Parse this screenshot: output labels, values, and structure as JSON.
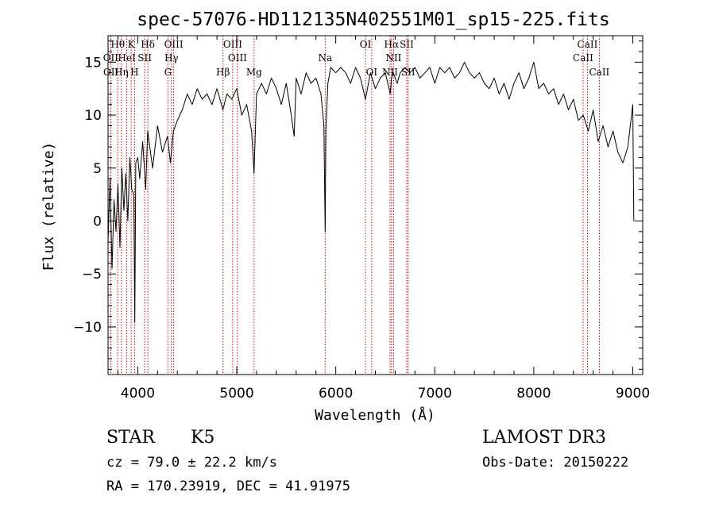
{
  "chart_data": {
    "type": "line",
    "title": "spec-57076-HD112135N402551M01_sp15-225.fits",
    "xlabel": "Wavelength (Å)",
    "ylabel": "Flux (relative)",
    "xlim": [
      3700,
      9100
    ],
    "ylim": [
      -14.5,
      17.5
    ],
    "xticks": [
      4000,
      5000,
      6000,
      7000,
      8000,
      9000
    ],
    "yticks": [
      -10,
      -5,
      0,
      5,
      10,
      15
    ],
    "xtick_labels": [
      "4000",
      "5000",
      "6000",
      "7000",
      "8000",
      "9000"
    ],
    "ytick_labels": [
      "−10",
      "−5",
      "0",
      "5",
      "10",
      "15"
    ],
    "line_color": "#000000",
    "marker_color": "#cc0000",
    "series": [
      {
        "name": "flux",
        "x": [
          3700,
          3720,
          3740,
          3760,
          3780,
          3800,
          3820,
          3840,
          3860,
          3880,
          3900,
          3920,
          3940,
          3960,
          3970,
          3980,
          4000,
          4020,
          4050,
          4080,
          4100,
          4150,
          4200,
          4250,
          4300,
          4330,
          4360,
          4400,
          4450,
          4500,
          4550,
          4600,
          4650,
          4700,
          4750,
          4800,
          4860,
          4900,
          4950,
          5000,
          5050,
          5100,
          5150,
          5175,
          5200,
          5250,
          5300,
          5350,
          5400,
          5450,
          5500,
          5550,
          5580,
          5600,
          5650,
          5700,
          5750,
          5800,
          5850,
          5880,
          5893,
          5900,
          5920,
          5950,
          6000,
          6050,
          6100,
          6150,
          6200,
          6250,
          6300,
          6350,
          6400,
          6450,
          6500,
          6550,
          6563,
          6580,
          6620,
          6650,
          6700,
          6750,
          6800,
          6850,
          6900,
          6950,
          7000,
          7050,
          7100,
          7150,
          7200,
          7250,
          7300,
          7350,
          7400,
          7450,
          7500,
          7550,
          7600,
          7650,
          7700,
          7750,
          7800,
          7850,
          7900,
          7950,
          8000,
          8050,
          8100,
          8150,
          8200,
          8250,
          8300,
          8350,
          8400,
          8450,
          8500,
          8550,
          8600,
          8650,
          8700,
          8750,
          8800,
          8850,
          8900,
          8950,
          9000,
          9010
        ],
        "values": [
          -2.0,
          4.0,
          -4.5,
          2.0,
          -1.0,
          3.5,
          -2.5,
          5.0,
          1.0,
          4.5,
          0.0,
          6.0,
          3.0,
          2.5,
          -9.5,
          5.5,
          6.0,
          4.0,
          7.5,
          3.0,
          8.5,
          5.0,
          9.0,
          6.5,
          8.0,
          5.5,
          8.5,
          9.5,
          10.5,
          12.0,
          11.0,
          12.5,
          11.5,
          12.0,
          11.0,
          12.5,
          10.5,
          12.0,
          11.5,
          12.5,
          10.0,
          11.0,
          8.5,
          4.5,
          12.0,
          13.0,
          12.0,
          13.5,
          12.5,
          11.0,
          13.0,
          10.0,
          8.0,
          13.5,
          12.0,
          14.0,
          13.0,
          13.5,
          12.0,
          9.0,
          -1.0,
          8.5,
          13.0,
          14.5,
          14.0,
          14.5,
          14.0,
          13.0,
          14.5,
          13.5,
          11.5,
          14.0,
          12.5,
          13.5,
          14.0,
          12.0,
          13.5,
          14.0,
          13.0,
          14.0,
          14.5,
          14.0,
          14.5,
          13.5,
          14.0,
          14.5,
          13.0,
          14.5,
          14.0,
          14.5,
          13.5,
          14.0,
          15.0,
          14.0,
          13.5,
          14.0,
          13.0,
          12.5,
          13.5,
          12.0,
          13.0,
          11.5,
          13.0,
          14.0,
          12.5,
          13.5,
          15.0,
          12.5,
          13.0,
          12.0,
          12.5,
          11.0,
          12.0,
          10.5,
          11.5,
          9.5,
          10.0,
          8.5,
          10.5,
          7.5,
          9.0,
          7.0,
          8.5,
          6.5,
          5.5,
          7.0,
          11.0,
          0.0
        ]
      }
    ],
    "spectral_lines": [
      {
        "label": "Hθ",
        "x": 3798,
        "row": 0
      },
      {
        "label": "K",
        "x": 3934,
        "row": 0
      },
      {
        "label": "Hδ",
        "x": 4102,
        "row": 0
      },
      {
        "label": "OIII",
        "x": 4363,
        "row": 0
      },
      {
        "label": "OIII",
        "x": 4959,
        "row": 0
      },
      {
        "label": "OI",
        "x": 6300,
        "row": 0
      },
      {
        "label": "Hα",
        "x": 6563,
        "row": 0
      },
      {
        "label": "SII",
        "x": 6717,
        "row": 0
      },
      {
        "label": "CaII",
        "x": 8542,
        "row": 0
      },
      {
        "label": "OII",
        "x": 3727,
        "row": 1
      },
      {
        "label": "HeI",
        "x": 3889,
        "row": 1
      },
      {
        "label": "SII",
        "x": 4070,
        "row": 1
      },
      {
        "label": "Hγ",
        "x": 4340,
        "row": 1
      },
      {
        "label": "OIII",
        "x": 5007,
        "row": 1
      },
      {
        "label": "Na",
        "x": 5893,
        "row": 1
      },
      {
        "label": "NII",
        "x": 6584,
        "row": 1
      },
      {
        "label": "CaII",
        "x": 8498,
        "row": 1
      },
      {
        "label": "OII",
        "x": 3729,
        "row": 2
      },
      {
        "label": "Hη",
        "x": 3835,
        "row": 2
      },
      {
        "label": "H",
        "x": 3968,
        "row": 2
      },
      {
        "label": "G",
        "x": 4305,
        "row": 2
      },
      {
        "label": "Hβ",
        "x": 4861,
        "row": 2
      },
      {
        "label": "Mg",
        "x": 5175,
        "row": 2
      },
      {
        "label": "OI",
        "x": 6363,
        "row": 2
      },
      {
        "label": "NII",
        "x": 6548,
        "row": 2
      },
      {
        "label": "SII",
        "x": 6731,
        "row": 2
      },
      {
        "label": "CaII",
        "x": 8662,
        "row": 2
      }
    ]
  },
  "info": {
    "object_class": "STAR",
    "subclass": "K5",
    "survey": "LAMOST DR3",
    "cz": "cz = 79.0 ± 22.2 km/s",
    "obs_date": "Obs-Date: 20150222",
    "coords": "RA = 170.23919, DEC =  41.91975"
  }
}
